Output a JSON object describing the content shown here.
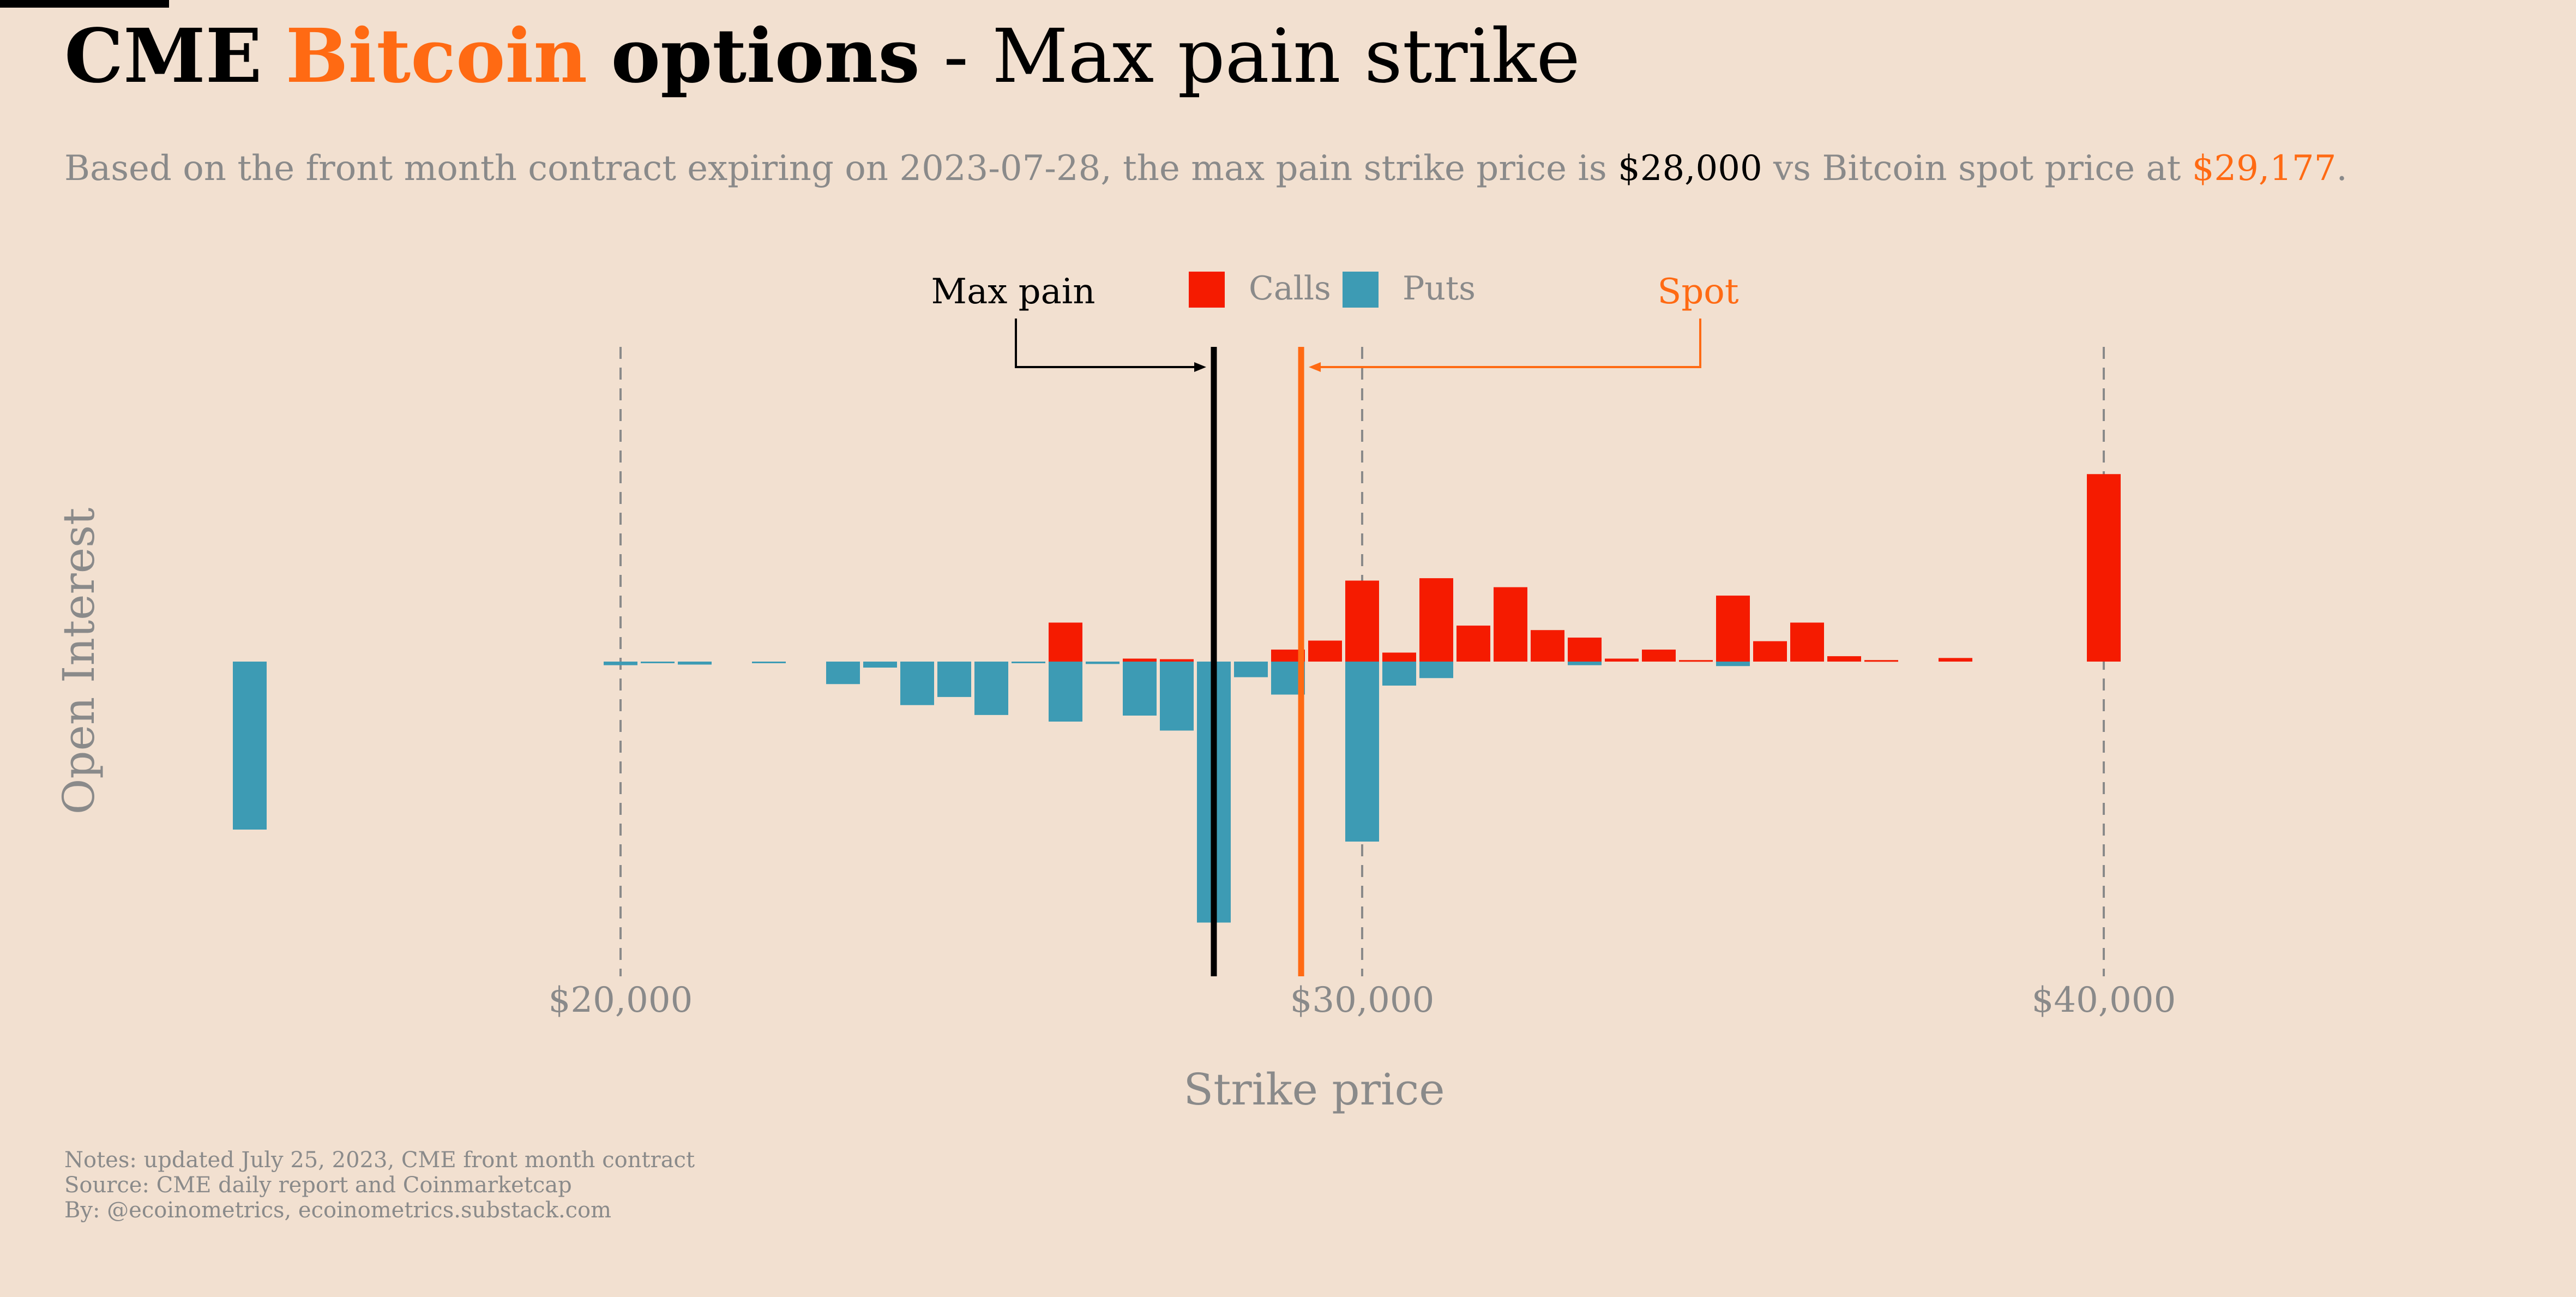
{
  "header": {
    "title_part1": "CME",
    "title_part2": "Bitcoin",
    "title_part3": "options",
    "title_part4": " - Max pain strike",
    "subtitle_part1": "Based on the front month contract expiring on 2023-07-28, the max pain strike price is ",
    "subtitle_max_pain": "$28,000",
    "subtitle_part2": " vs Bitcoin spot price at ",
    "subtitle_spot": "$29,177",
    "subtitle_end": "."
  },
  "notes": {
    "line1": "Notes: updated July 25, 2023, CME front month contract",
    "line2": "Source: CME daily report and Coinmarketcap",
    "line3": "By: @ecoinometrics, ecoinometrics.substack.com"
  },
  "colors": {
    "calls": "#f51b00",
    "puts": "#3d9bb4",
    "max_pain": "#000000",
    "spot": "#ff6a13",
    "background": "#f2e0d0"
  },
  "chart_data": {
    "type": "bar",
    "title": "CME Bitcoin options - Max pain strike",
    "xlabel": "Strike price",
    "ylabel": "Open Interest",
    "xlim": [
      12500,
      45500
    ],
    "ylim": [
      -1000,
      1000
    ],
    "x_ticks": [
      20000,
      30000,
      40000
    ],
    "x_tick_labels": [
      "$20,000",
      "$30,000",
      "$40,000"
    ],
    "legend": {
      "position": "top-center",
      "entries": [
        "Calls",
        "Puts"
      ]
    },
    "max_pain": {
      "label": "Max pain",
      "value": 28000
    },
    "spot": {
      "label": "Spot",
      "value": 29177
    },
    "series": [
      {
        "name": "Calls",
        "strikes": [
          26000,
          27000,
          27500,
          29000,
          29500,
          30000,
          30500,
          31000,
          31500,
          32000,
          32500,
          33000,
          33500,
          34000,
          34500,
          35000,
          35500,
          36000,
          36500,
          37000,
          38000,
          40000
        ],
        "values": [
          130,
          10,
          8,
          40,
          70,
          270,
          30,
          278,
          120,
          248,
          105,
          80,
          10,
          40,
          5,
          220,
          68,
          130,
          18,
          5,
          12,
          625
        ]
      },
      {
        "name": "Puts",
        "strikes": [
          15000,
          20000,
          20500,
          21000,
          22000,
          23000,
          23500,
          24000,
          24500,
          25000,
          25500,
          26000,
          26500,
          27000,
          27500,
          28000,
          28500,
          29000,
          30000,
          30500,
          31000,
          33000,
          35000
        ],
        "values": [
          -560,
          -12,
          -5,
          -10,
          -4,
          -75,
          -20,
          -145,
          -118,
          -178,
          -5,
          -200,
          -8,
          -180,
          -230,
          -870,
          -52,
          -110,
          -600,
          -80,
          -55,
          -12,
          -15
        ]
      }
    ]
  }
}
